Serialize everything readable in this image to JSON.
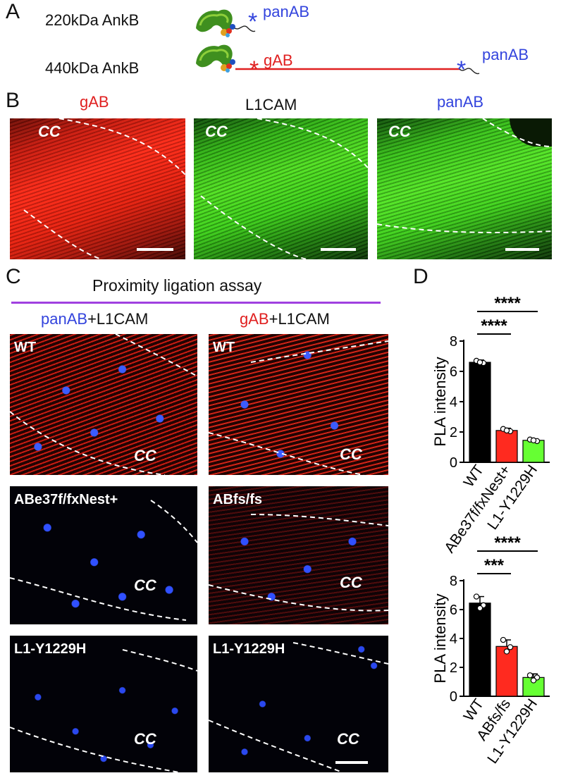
{
  "panel_letters": {
    "a": "A",
    "b": "B",
    "c": "C",
    "d": "D"
  },
  "panelA": {
    "row1_label": "220kDa AnkB",
    "row2_label": "440kDa AnkB",
    "star": "*",
    "panAB": "panAB",
    "gAB": "gAB",
    "colors": {
      "panAB": "#3344dd",
      "gAB": "#e02020",
      "linker": "#e02020"
    }
  },
  "panelB": {
    "titles": [
      "gAB",
      "L1CAM",
      "panAB"
    ],
    "region_label": "CC",
    "colors": {
      "gAB": "#e02020",
      "L1CAM": "#111111",
      "panAB": "#3344dd"
    }
  },
  "panelC": {
    "title": "Proximity ligation assay",
    "col1": {
      "part1": "panAB",
      "part2": "+L1CAM"
    },
    "col2": {
      "part1": "gAB",
      "part2": "+L1CAM"
    },
    "rows_left": [
      "WT",
      "ABe37f/fxNest+",
      "L1-Y1229H"
    ],
    "rows_right": [
      "WT",
      "ABfs/fs",
      "L1-Y1229H"
    ],
    "region_label": "CC",
    "rule_color": "#a040e0"
  },
  "panelD": {
    "charts": [
      {
        "type": "bar",
        "categories": [
          "WT",
          "ABe37f/fxNest+",
          "L1-Y1229H"
        ],
        "values": [
          6.6,
          2.1,
          1.45
        ],
        "errors": [
          0.15,
          0.15,
          0.1
        ],
        "points": [
          [
            6.7,
            6.55,
            6.6
          ],
          [
            2.2,
            2.05,
            2.1
          ],
          [
            1.5,
            1.4,
            1.45
          ]
        ],
        "colors": [
          "#000000",
          "#ff2a1f",
          "#66ff33"
        ],
        "ylabel": "PLA intensity",
        "ylim": [
          0,
          8
        ],
        "yticks": [
          "0",
          "2",
          "4",
          "6",
          "8"
        ],
        "significance": [
          {
            "from": 0,
            "to": 1,
            "label": "****"
          },
          {
            "from": 0,
            "to": 2,
            "label": "****"
          }
        ]
      },
      {
        "type": "bar",
        "categories": [
          "WT",
          "ABfs/fs",
          "L1-Y1229H"
        ],
        "values": [
          6.45,
          3.45,
          1.3
        ],
        "errors": [
          0.45,
          0.45,
          0.25
        ],
        "points": [
          [
            6.9,
            6.3,
            6.1
          ],
          [
            3.9,
            3.4,
            3.1
          ],
          [
            1.45,
            1.3,
            1.1
          ]
        ],
        "colors": [
          "#000000",
          "#ff2a1f",
          "#66ff33"
        ],
        "ylabel": "PLA intensity",
        "ylim": [
          0,
          8
        ],
        "yticks": [
          "0",
          "2",
          "4",
          "6",
          "8"
        ],
        "significance": [
          {
            "from": 0,
            "to": 1,
            "label": "***"
          },
          {
            "from": 0,
            "to": 2,
            "label": "****"
          }
        ]
      }
    ]
  }
}
